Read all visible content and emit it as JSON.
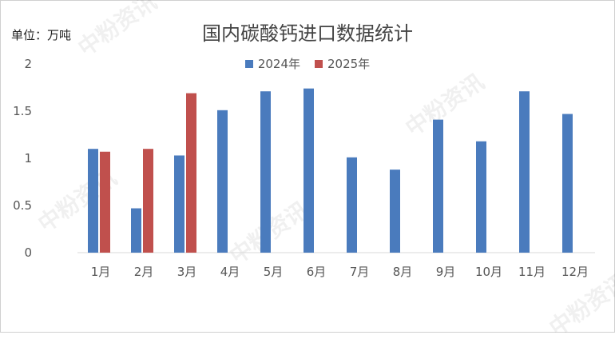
{
  "unit_label": "单位：万吨",
  "watermark": "中粉资讯",
  "chart_data": {
    "type": "bar",
    "title": "国内碳酸钙进口数据统计",
    "categories": [
      "1月",
      "2月",
      "3月",
      "4月",
      "5月",
      "6月",
      "7月",
      "8月",
      "9月",
      "10月",
      "11月",
      "12月"
    ],
    "series": [
      {
        "name": "2024年",
        "color": "#4a7bbd",
        "values": [
          1.1,
          0.47,
          1.03,
          1.51,
          1.71,
          1.74,
          1.01,
          0.88,
          1.41,
          1.18,
          1.71,
          1.47
        ]
      },
      {
        "name": "2025年",
        "color": "#c0504d",
        "values": [
          1.07,
          1.1,
          1.69,
          null,
          null,
          null,
          null,
          null,
          null,
          null,
          null,
          null
        ]
      }
    ],
    "ylim": [
      0,
      2
    ],
    "yticks": [
      "0",
      "0.5",
      "1",
      "1.5",
      "2"
    ],
    "legend_position": "top-center",
    "grid": false
  }
}
